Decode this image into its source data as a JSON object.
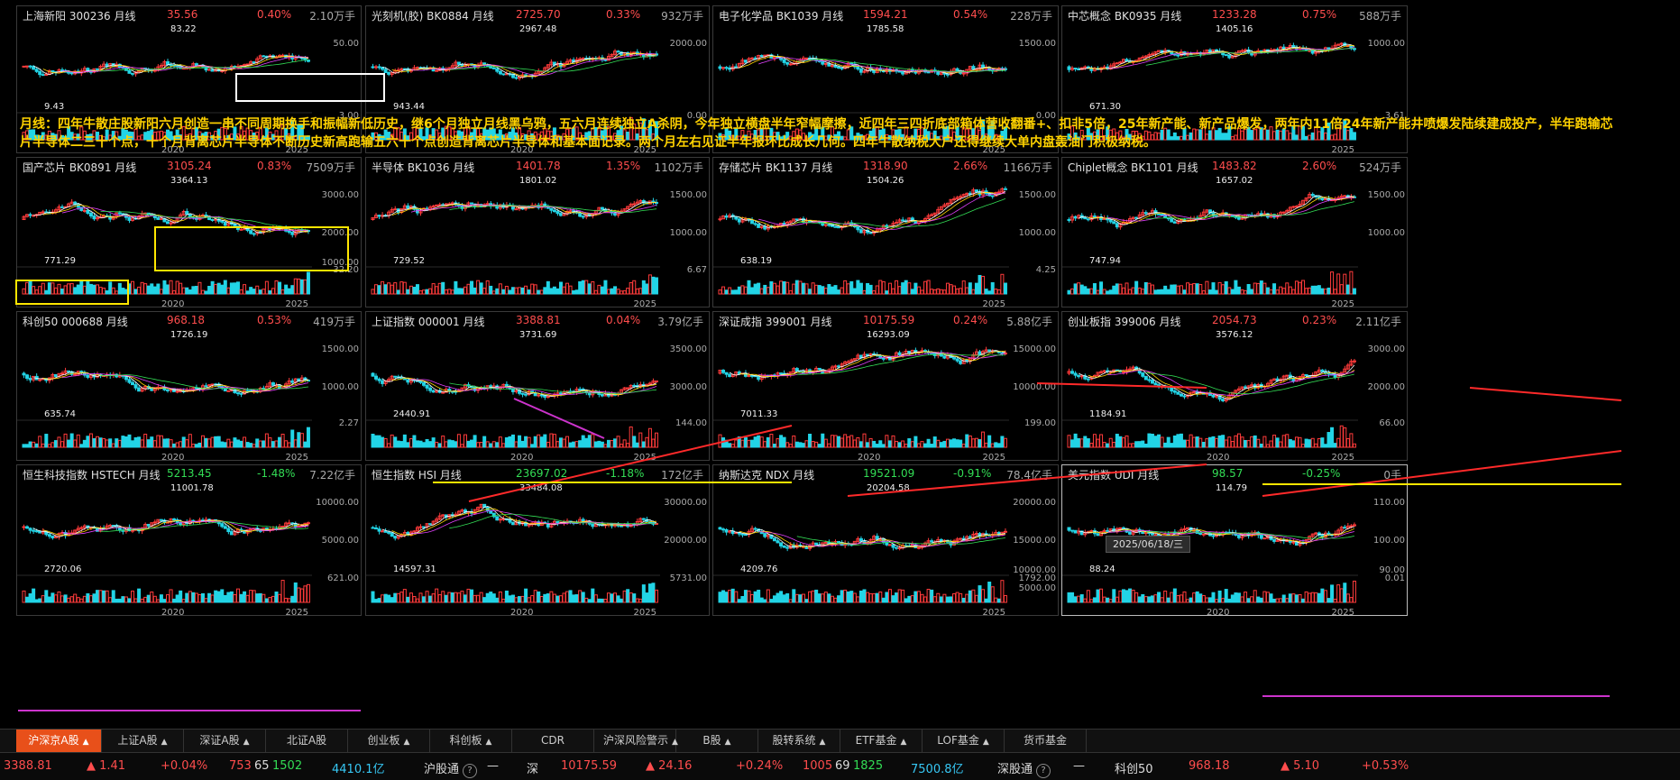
{
  "annotation": "月线：四年牛散庄股新阳六月创造一串不同周期换手和振幅新低历史，继6个月独立月线黑乌鸦，五六月连续独立A杀阴，今年独立横盘半年窄幅摩擦，近四年三四折底部箱体营收翻番+、扣非5倍，25年新产能、新产品爆发，两年内11倍24年新产能井喷爆发陆续建成投产，半年跑输芯片半导体二三十个点，十个月背离芯片半导体不断历史新高跑输五六十个点创造背离芯片半导体和基本面记录。两个月左右见证半年报环比成长几何。四年牛散纳税大户还得继续大单内盘轰油门积极纳税。",
  "date_label": "2025/06/18/三",
  "panels": [
    {
      "name": "上海新阳 300236 月线",
      "price": "35.56",
      "pct": "0.40%",
      "dir": "up",
      "vol": "2.10万手",
      "hi": "83.22",
      "lo": "9.43",
      "y1": "50.00",
      "y2": "",
      "vy": "3.00",
      "x1": "2020",
      "x2": "2025"
    },
    {
      "name": "光刻机(胶) BK0884 月线",
      "price": "2725.70",
      "pct": "0.33%",
      "dir": "up",
      "vol": "932万手",
      "hi": "2967.48",
      "lo": "943.44",
      "y1": "2000.00",
      "y2": "",
      "vy": "0.00",
      "x1": "2020",
      "x2": "2025"
    },
    {
      "name": "电子化学品 BK1039 月线",
      "price": "1594.21",
      "pct": "0.54%",
      "dir": "up",
      "vol": "228万手",
      "hi": "1785.58",
      "lo": "",
      "y1": "1500.00",
      "y2": "",
      "vy": "0.00",
      "x1": "",
      "x2": "2025"
    },
    {
      "name": "中芯概念 BK0935 月线",
      "price": "1233.28",
      "pct": "0.75%",
      "dir": "up",
      "vol": "588万手",
      "hi": "1405.16",
      "lo": "671.30",
      "y1": "1000.00",
      "y2": "",
      "vy": "3.61",
      "x1": "",
      "x2": "2025"
    },
    {
      "name": "国产芯片 BK0891 月线",
      "price": "3105.24",
      "pct": "0.83%",
      "dir": "up",
      "vol": "7509万手",
      "hi": "3364.13",
      "lo": "771.29",
      "y1": "3000.00",
      "y2": "2000.00",
      "y3": "1000.00",
      "vy": "32.20",
      "x1": "2020",
      "x2": "2025"
    },
    {
      "name": "半导体 BK1036 月线",
      "price": "1401.78",
      "pct": "1.35%",
      "dir": "up",
      "vol": "1102万手",
      "hi": "1801.02",
      "lo": "729.52",
      "y1": "1500.00",
      "y2": "1000.00",
      "vy": "6.67",
      "x1": "",
      "x2": "2025"
    },
    {
      "name": "存储芯片 BK1137 月线",
      "price": "1318.90",
      "pct": "2.66%",
      "dir": "up",
      "vol": "1166万手",
      "hi": "1504.26",
      "lo": "638.19",
      "y1": "1500.00",
      "y2": "1000.00",
      "vy": "4.25",
      "x1": "",
      "x2": "2025"
    },
    {
      "name": "Chiplet概念 BK1101 月线",
      "price": "1483.82",
      "pct": "2.60%",
      "dir": "up",
      "vol": "524万手",
      "hi": "1657.02",
      "lo": "747.94",
      "y1": "1500.00",
      "y2": "1000.00",
      "vy": "",
      "x1": "",
      "x2": "2025"
    },
    {
      "name": "科创50 000688 月线",
      "price": "968.18",
      "pct": "0.53%",
      "dir": "up",
      "vol": "419万手",
      "hi": "1726.19",
      "lo": "635.74",
      "y1": "1500.00",
      "y2": "1000.00",
      "vy": "2.27",
      "x1": "2020",
      "x2": "2025"
    },
    {
      "name": "上证指数 000001 月线",
      "price": "3388.81",
      "pct": "0.04%",
      "dir": "up",
      "vol": "3.79亿手",
      "hi": "3731.69",
      "lo": "2440.91",
      "y1": "3500.00",
      "y2": "3000.00",
      "vy": "144.00",
      "x1": "2020",
      "x2": "2025"
    },
    {
      "name": "深证成指 399001 月线",
      "price": "10175.59",
      "pct": "0.24%",
      "dir": "up",
      "vol": "5.88亿手",
      "hi": "16293.09",
      "lo": "7011.33",
      "y1": "15000.00",
      "y2": "10000.00",
      "vy": "199.00",
      "x1": "2020",
      "x2": "2025"
    },
    {
      "name": "创业板指 399006 月线",
      "price": "2054.73",
      "pct": "0.23%",
      "dir": "up",
      "vol": "2.11亿手",
      "hi": "3576.12",
      "lo": "1184.91",
      "y1": "3000.00",
      "y2": "2000.00",
      "vy": "66.00",
      "x1": "2020",
      "x2": "2025"
    },
    {
      "name": "恒生科技指数 HSTECH 月线",
      "price": "5213.45",
      "pct": "-1.48%",
      "dir": "dn",
      "vol": "7.22亿手",
      "hi": "11001.78",
      "lo": "2720.06",
      "y1": "10000.00",
      "y2": "5000.00",
      "vy": "621.00",
      "x1": "2020",
      "x2": "2025"
    },
    {
      "name": "恒生指数 HSI 月线",
      "price": "23697.02",
      "pct": "-1.18%",
      "dir": "dn",
      "vol": "172亿手",
      "hi": "33484.08",
      "lo": "14597.31",
      "y1": "30000.00",
      "y2": "20000.00",
      "vy": "5731.00",
      "x1": "2020",
      "x2": "2025"
    },
    {
      "name": "纳斯达克 NDX 月线",
      "price": "19521.09",
      "pct": "-0.91%",
      "dir": "dn",
      "vol": "78.4亿手",
      "hi": "20204.58",
      "lo": "4209.76",
      "y1": "20000.00",
      "y2": "15000.00",
      "y3": "10000.00",
      "y4": "5000.00",
      "vy": "1792.00",
      "x1": "",
      "x2": "2025"
    },
    {
      "name": "美元指数 UDI 月线",
      "price": "98.57",
      "pct": "-0.25%",
      "dir": "dn",
      "vol": "0手",
      "hi": "114.79",
      "lo": "88.24",
      "y1": "110.00",
      "y2": "100.00",
      "y3": "90.00",
      "vy": "0.01",
      "x1": "2020",
      "x2": "2025"
    }
  ],
  "tabs": [
    {
      "label": "沪深京A股",
      "arrow": "▲"
    },
    {
      "label": "上证A股",
      "arrow": "▲"
    },
    {
      "label": "深证A股",
      "arrow": "▲"
    },
    {
      "label": "北证A股",
      "arrow": ""
    },
    {
      "label": "创业板",
      "arrow": "▲"
    },
    {
      "label": "科创板",
      "arrow": "▲"
    },
    {
      "label": "CDR",
      "arrow": ""
    },
    {
      "label": "沪深风险警示",
      "arrow": "▲"
    },
    {
      "label": "B股",
      "arrow": "▲"
    },
    {
      "label": "股转系统",
      "arrow": "▲"
    },
    {
      "label": "ETF基金",
      "arrow": "▲"
    },
    {
      "label": "LOF基金",
      "arrow": "▲"
    },
    {
      "label": "货币基金",
      "arrow": ""
    }
  ],
  "ticker": {
    "sh_value": "3388.81",
    "sh_change": "▲ 1.41",
    "sh_pct": "+0.04%",
    "sh_up": "753",
    "sh_flat": "65",
    "sh_down": "1502",
    "sh_amount": "4410.1亿",
    "hgt_label": "沪股通",
    "hgt_value": "—",
    "sz_label": "深",
    "sz_value": "10175.59",
    "sz_change": "▲ 24.16",
    "sz_pct": "+0.24%",
    "sz_up": "1005",
    "sz_flat": "69",
    "sz_down": "1825",
    "sz_amount": "7500.8亿",
    "sgt_label": "深股通",
    "sgt_value": "—",
    "kc_label": "科创50",
    "kc_value": "968.18",
    "kc_change": "▲ 5.10",
    "kc_pct": "+0.53%"
  }
}
